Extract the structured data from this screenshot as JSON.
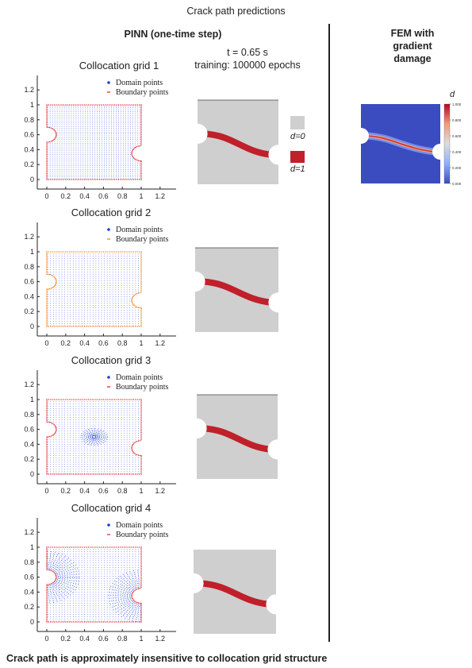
{
  "header": {
    "title": "Crack path predictions",
    "pinn_heading": "PINN (one-time step)",
    "fem_heading_1": "FEM with",
    "fem_heading_2": "gradient damage",
    "time_label": "t = 0.65 s",
    "training_label": "training: 100000 epochs"
  },
  "grids": [
    {
      "title": "Collocation grid 1",
      "legend": [
        "Domain points",
        "Boundary points"
      ]
    },
    {
      "title": "Collocation grid 2",
      "legend": [
        "Domain points",
        "Boundary points"
      ]
    },
    {
      "title": "Collocation grid 3",
      "legend": [
        "Domain points",
        "Boundary points"
      ]
    },
    {
      "title": "Collocation grid 4",
      "legend": [
        "Domain points",
        "Boundary points"
      ]
    }
  ],
  "axis": {
    "y_ticks": [
      "0",
      "0.2",
      "0.4",
      "0.6",
      "0.8",
      "1",
      "1.2"
    ],
    "x_ticks": [
      "0",
      "0.2",
      "0.4",
      "0.6",
      "0.8",
      "1",
      "1.2"
    ]
  },
  "damage_legend": {
    "d0": "d=0",
    "d1": "d=1"
  },
  "colorbar": {
    "label": "d",
    "ticks": [
      "1.000",
      "0.800",
      "0.600",
      "0.400",
      "0.200",
      "0.000"
    ]
  },
  "colors": {
    "domain_points": "#1f3fd8",
    "boundary_points": "#e02020",
    "boundary_points_grid2": "#f07a10",
    "crack": "#c0202a",
    "specimen": "#cfcfcf",
    "fem_background": "#3b4cc0"
  },
  "footer": "Crack path is approximately insensitive to collocation grid structure"
}
